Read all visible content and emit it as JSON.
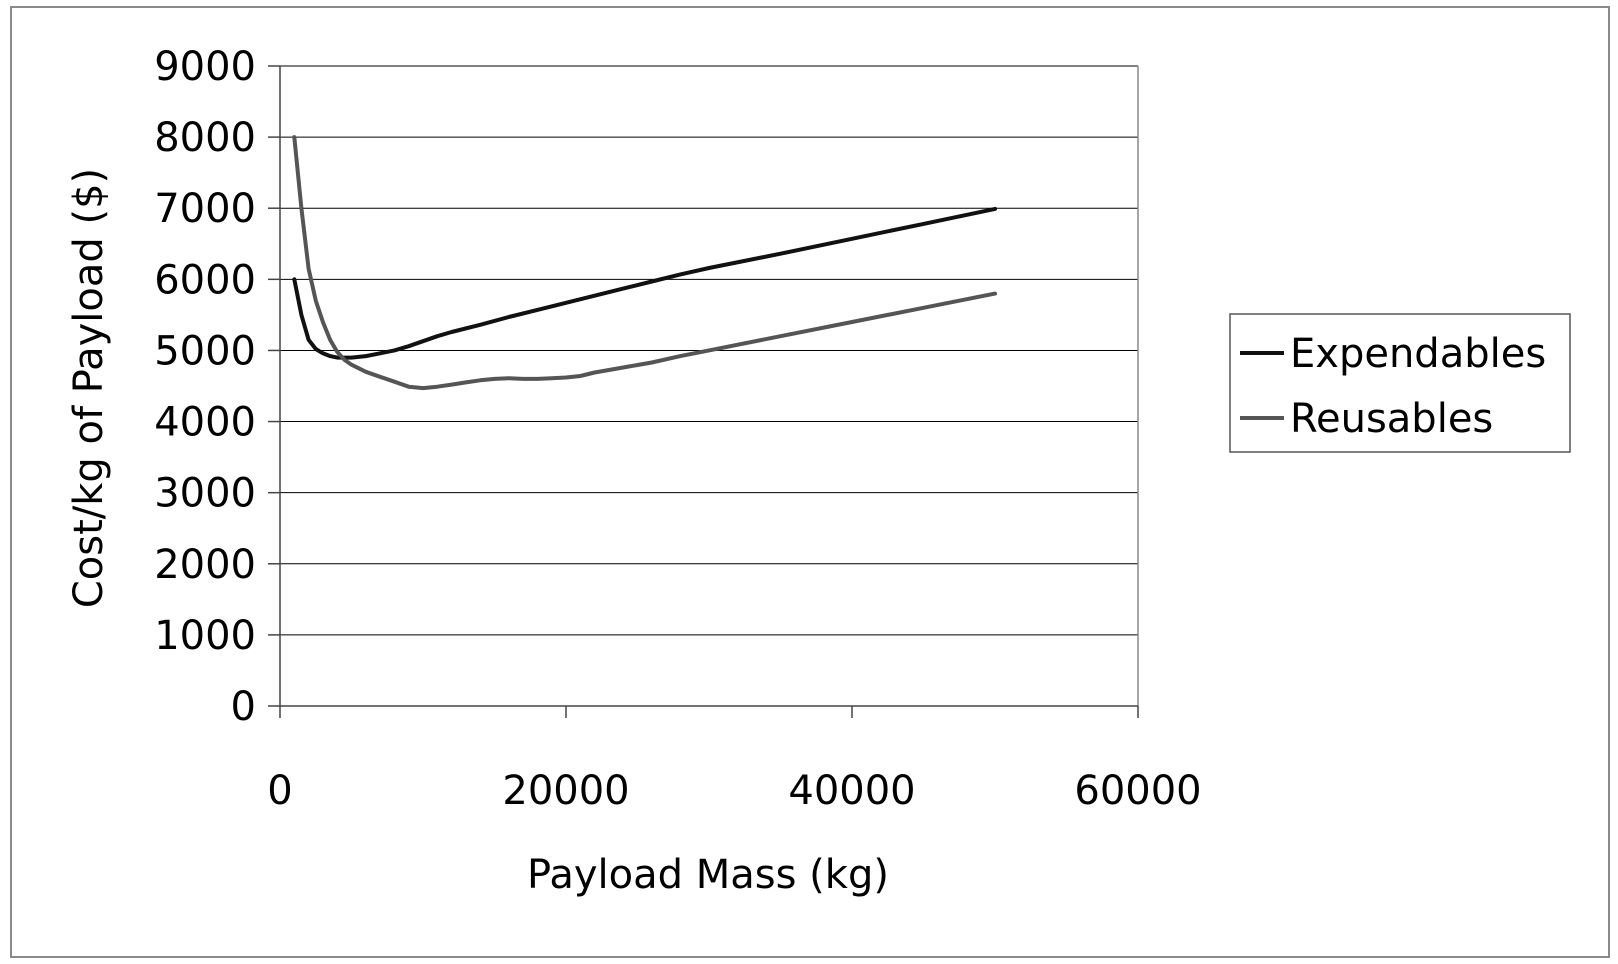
{
  "chart_data": {
    "type": "line",
    "title": "",
    "xlabel": "Payload Mass (kg)",
    "ylabel": "Cost/kg of Payload ($)",
    "xlim": [
      0,
      60000
    ],
    "ylim": [
      0,
      9000
    ],
    "x_ticks": [
      0,
      20000,
      40000,
      60000
    ],
    "y_ticks": [
      0,
      1000,
      2000,
      3000,
      4000,
      5000,
      6000,
      7000,
      8000,
      9000
    ],
    "grid": "horizontal",
    "legend_position": "right",
    "series": [
      {
        "name": "Expendables",
        "color": "#111111",
        "points": [
          [
            1000,
            6000
          ],
          [
            1500,
            5500
          ],
          [
            2000,
            5150
          ],
          [
            2500,
            5020
          ],
          [
            3000,
            4960
          ],
          [
            3500,
            4920
          ],
          [
            4000,
            4900
          ],
          [
            5000,
            4900
          ],
          [
            6000,
            4920
          ],
          [
            7000,
            4960
          ],
          [
            8000,
            5000
          ],
          [
            9000,
            5060
          ],
          [
            10000,
            5130
          ],
          [
            11000,
            5200
          ],
          [
            12000,
            5260
          ],
          [
            14000,
            5360
          ],
          [
            16000,
            5470
          ],
          [
            18000,
            5570
          ],
          [
            20000,
            5670
          ],
          [
            22000,
            5770
          ],
          [
            24000,
            5870
          ],
          [
            26000,
            5970
          ],
          [
            28000,
            6070
          ],
          [
            30000,
            6160
          ],
          [
            35000,
            6360
          ],
          [
            40000,
            6570
          ],
          [
            45000,
            6780
          ],
          [
            50000,
            6990
          ]
        ]
      },
      {
        "name": "Reusables",
        "color": "#555555",
        "points": [
          [
            1000,
            8000
          ],
          [
            1500,
            7000
          ],
          [
            2000,
            6150
          ],
          [
            2500,
            5700
          ],
          [
            3000,
            5400
          ],
          [
            3500,
            5150
          ],
          [
            4000,
            4980
          ],
          [
            4500,
            4870
          ],
          [
            5000,
            4800
          ],
          [
            6000,
            4700
          ],
          [
            7000,
            4630
          ],
          [
            8000,
            4560
          ],
          [
            9000,
            4490
          ],
          [
            10000,
            4470
          ],
          [
            11000,
            4490
          ],
          [
            12000,
            4520
          ],
          [
            13000,
            4550
          ],
          [
            14000,
            4580
          ],
          [
            15000,
            4600
          ],
          [
            16000,
            4610
          ],
          [
            17000,
            4600
          ],
          [
            18000,
            4600
          ],
          [
            19000,
            4610
          ],
          [
            20000,
            4620
          ],
          [
            21000,
            4640
          ],
          [
            22000,
            4690
          ],
          [
            24000,
            4760
          ],
          [
            26000,
            4830
          ],
          [
            28000,
            4920
          ],
          [
            30000,
            5000
          ],
          [
            35000,
            5200
          ],
          [
            40000,
            5400
          ],
          [
            45000,
            5600
          ],
          [
            50000,
            5800
          ]
        ]
      }
    ]
  }
}
